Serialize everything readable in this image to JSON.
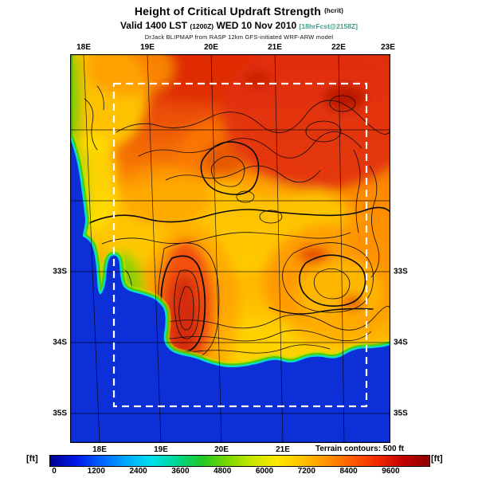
{
  "header": {
    "title": "Height of Critical Updraft Strength",
    "title_param": "(hcrit)",
    "valid_prefix": "Valid 1400 LST",
    "valid_zulu": "(1200Z)",
    "valid_date": "WED 10 Nov 2010",
    "valid_fcst": "[18hrFcst@2158Z]",
    "model_credit": "DrJack BLIPMAP from RASP 12km GFS-initiated WRF-ARW model"
  },
  "map": {
    "lon_labels_top": [
      "18E",
      "19E",
      "20E",
      "21E",
      "22E",
      "23E"
    ],
    "lon_labels_bottom": [
      "18E",
      "19E",
      "20E",
      "21E"
    ],
    "lat_labels_left": [
      "33S",
      "34S",
      "35S"
    ],
    "lat_labels_right": [
      "33S",
      "34S",
      "35S"
    ]
  },
  "legend": {
    "unit_left": "[ft]",
    "unit_right": "[ft]",
    "terrain_note": "Terrain contours: 500 ft",
    "tick_labels": [
      "0",
      "1200",
      "2400",
      "3600",
      "4800",
      "6000",
      "7200",
      "8400",
      "9600"
    ],
    "colorbar_colors": [
      "#000090",
      "#0018e8",
      "#0060ff",
      "#00a8ff",
      "#00e0f0",
      "#00d890",
      "#20c828",
      "#78d800",
      "#c8e800",
      "#ffe800",
      "#ffc000",
      "#ff9000",
      "#ff5800",
      "#f02800",
      "#c00000",
      "#900000"
    ]
  },
  "chart_data": {
    "type": "heatmap",
    "title": "Height of Critical Updraft Strength (hcrit)",
    "valid": "1400 LST (1200Z) WED 10 Nov 2010",
    "forecast_label": "18hrFcst@2158Z",
    "model": "DrJack BLIPMAP from RASP 12km GFS-initiated WRF-ARW model",
    "units": "ft",
    "colorbar_ticks": [
      0,
      1200,
      2400,
      3600,
      4800,
      6000,
      7200,
      8400,
      9600
    ],
    "lon_labels": [
      "18E",
      "19E",
      "20E",
      "21E",
      "22E",
      "23E"
    ],
    "lat_labels": [
      "33S",
      "34S",
      "35S"
    ],
    "terrain_contour_interval_ft": 500,
    "legend_position": "bottom",
    "notes": "Filled-contour forecast map; blue ocean to west and south, yellow-to-red high values inland, black terrain contours, white dashed inner model domain box"
  }
}
